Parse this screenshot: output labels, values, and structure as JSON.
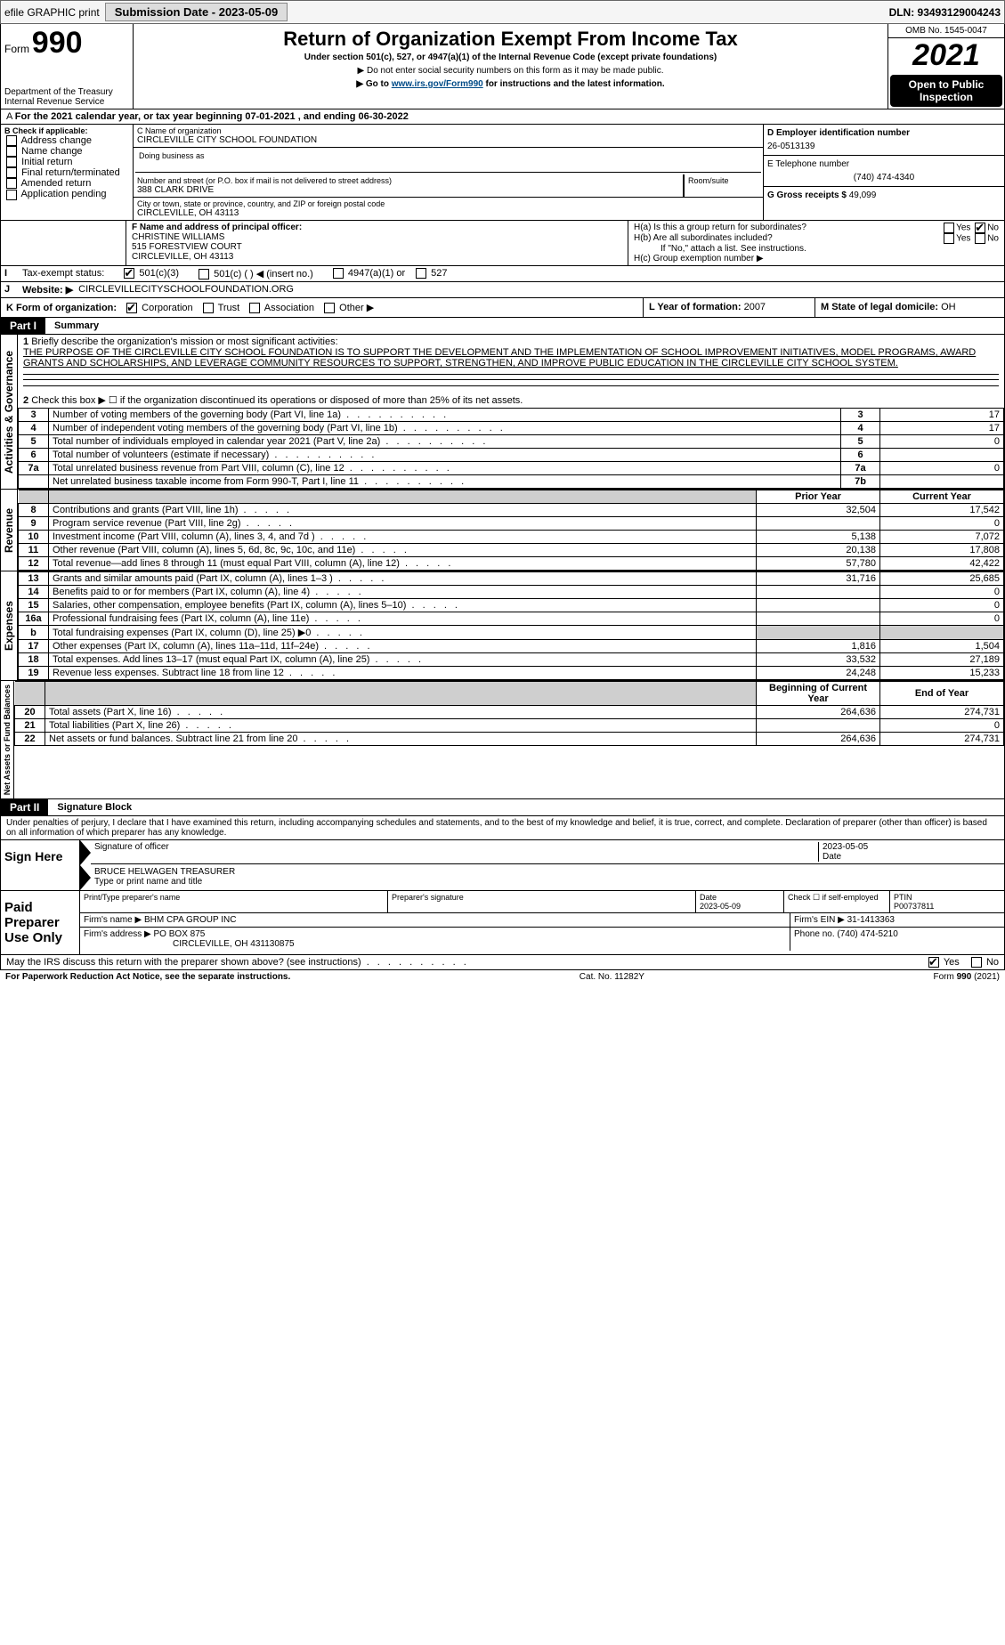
{
  "header": {
    "efile": "efile GRAPHIC print",
    "submission": "Submission Date - 2023-05-09",
    "dln": "DLN: 93493129004243"
  },
  "formTop": {
    "formLabel": "Form",
    "formNum": "990",
    "dept1": "Department of the Treasury",
    "dept2": "Internal Revenue Service",
    "title": "Return of Organization Exempt From Income Tax",
    "subtitle": "Under section 501(c), 527, or 4947(a)(1) of the Internal Revenue Code (except private foundations)",
    "note1": "▶ Do not enter social security numbers on this form as it may be made public.",
    "note2a": "▶ Go to ",
    "note2link": "www.irs.gov/Form990",
    "note2b": " for instructions and the latest information.",
    "omb": "OMB No. 1545-0047",
    "year": "2021",
    "open": "Open to Public Inspection"
  },
  "A": {
    "text": "For the 2021 calendar year, or tax year beginning 07-01-2021    , and ending 06-30-2022"
  },
  "B": {
    "title": "B Check if applicable:",
    "items": [
      "Address change",
      "Name change",
      "Initial return",
      "Final return/terminated",
      "Amended return",
      "Application pending"
    ]
  },
  "C": {
    "nameLabel": "C Name of organization",
    "name": "CIRCLEVILLE CITY SCHOOL FOUNDATION",
    "dba": "Doing business as",
    "streetLabel": "Number and street (or P.O. box if mail is not delivered to street address)",
    "street": "388 CLARK DRIVE",
    "room": "Room/suite",
    "cityLabel": "City or town, state or province, country, and ZIP or foreign postal code",
    "city": "CIRCLEVILLE, OH  43113"
  },
  "D": {
    "einLabel": "D Employer identification number",
    "ein": "26-0513139"
  },
  "E": {
    "telLabel": "E Telephone number",
    "tel": "(740) 474-4340"
  },
  "G": {
    "label": "G Gross receipts $",
    "val": "49,099"
  },
  "F": {
    "label": "F Name and address of principal officer:",
    "line1": "CHRISTINE WILLIAMS",
    "line2": "515 FORESTVIEW COURT",
    "line3": "CIRCLEVILLE, OH  43113"
  },
  "H": {
    "a": "H(a)  Is this a group return for subordinates?",
    "b": "H(b)  Are all subordinates included?",
    "bnote": "If \"No,\" attach a list. See instructions.",
    "c": "H(c)  Group exemption number ▶"
  },
  "I": {
    "label": "Tax-exempt status:",
    "opt1": "501(c)(3)",
    "opt2": "501(c) (  ) ◀ (insert no.)",
    "opt3": "4947(a)(1) or",
    "opt4": "527"
  },
  "J": {
    "label": "Website: ▶",
    "val": "CIRCLEVILLECITYSCHOOLFOUNDATION.ORG"
  },
  "K": {
    "label": "K Form of organization:",
    "opts": [
      "Corporation",
      "Trust",
      "Association",
      "Other ▶"
    ]
  },
  "L": {
    "label": "L Year of formation:",
    "val": "2007"
  },
  "M": {
    "label": "M State of legal domicile:",
    "val": "OH"
  },
  "part1": {
    "header": "Part I",
    "title": "Summary",
    "line1label": "Briefly describe the organization's mission or most significant activities:",
    "mission": "THE PURPOSE OF THE CIRCLEVILLE CITY SCHOOL FOUNDATION IS TO SUPPORT THE DEVELOPMENT AND THE IMPLEMENTATION OF SCHOOL IMPROVEMENT INITIATIVES, MODEL PROGRAMS, AWARD GRANTS AND SCHOLARSHIPS, AND LEVERAGE COMMUNITY RESOURCES TO SUPPORT, STRENGTHEN, AND IMPROVE PUBLIC EDUCATION IN THE CIRCLEVILLE CITY SCHOOL SYSTEM.",
    "line2": "Check this box ▶ ☐ if the organization discontinued its operations or disposed of more than 25% of its net assets.",
    "rows": [
      {
        "n": "3",
        "label": "Number of voting members of the governing body (Part VI, line 1a)",
        "box": "3",
        "val": "17"
      },
      {
        "n": "4",
        "label": "Number of independent voting members of the governing body (Part VI, line 1b)",
        "box": "4",
        "val": "17"
      },
      {
        "n": "5",
        "label": "Total number of individuals employed in calendar year 2021 (Part V, line 2a)",
        "box": "5",
        "val": "0"
      },
      {
        "n": "6",
        "label": "Total number of volunteers (estimate if necessary)",
        "box": "6",
        "val": ""
      },
      {
        "n": "7a",
        "label": "Total unrelated business revenue from Part VIII, column (C), line 12",
        "box": "7a",
        "val": "0"
      },
      {
        "n": "",
        "label": "Net unrelated business taxable income from Form 990-T, Part I, line 11",
        "box": "7b",
        "val": ""
      }
    ],
    "colPrior": "Prior Year",
    "colCurrent": "Current Year",
    "revenue": [
      {
        "n": "8",
        "label": "Contributions and grants (Part VIII, line 1h)",
        "p": "32,504",
        "c": "17,542"
      },
      {
        "n": "9",
        "label": "Program service revenue (Part VIII, line 2g)",
        "p": "",
        "c": "0"
      },
      {
        "n": "10",
        "label": "Investment income (Part VIII, column (A), lines 3, 4, and 7d )",
        "p": "5,138",
        "c": "7,072"
      },
      {
        "n": "11",
        "label": "Other revenue (Part VIII, column (A), lines 5, 6d, 8c, 9c, 10c, and 11e)",
        "p": "20,138",
        "c": "17,808"
      },
      {
        "n": "12",
        "label": "Total revenue—add lines 8 through 11 (must equal Part VIII, column (A), line 12)",
        "p": "57,780",
        "c": "42,422"
      }
    ],
    "expenses": [
      {
        "n": "13",
        "label": "Grants and similar amounts paid (Part IX, column (A), lines 1–3 )",
        "p": "31,716",
        "c": "25,685"
      },
      {
        "n": "14",
        "label": "Benefits paid to or for members (Part IX, column (A), line 4)",
        "p": "",
        "c": "0"
      },
      {
        "n": "15",
        "label": "Salaries, other compensation, employee benefits (Part IX, column (A), lines 5–10)",
        "p": "",
        "c": "0"
      },
      {
        "n": "16a",
        "label": "Professional fundraising fees (Part IX, column (A), line 11e)",
        "p": "",
        "c": "0"
      },
      {
        "n": "b",
        "label": "Total fundraising expenses (Part IX, column (D), line 25) ▶0",
        "p": "SHADE",
        "c": "SHADE"
      },
      {
        "n": "17",
        "label": "Other expenses (Part IX, column (A), lines 11a–11d, 11f–24e)",
        "p": "1,816",
        "c": "1,504"
      },
      {
        "n": "18",
        "label": "Total expenses. Add lines 13–17 (must equal Part IX, column (A), line 25)",
        "p": "33,532",
        "c": "27,189"
      },
      {
        "n": "19",
        "label": "Revenue less expenses. Subtract line 18 from line 12",
        "p": "24,248",
        "c": "15,233"
      }
    ],
    "colBegin": "Beginning of Current Year",
    "colEnd": "End of Year",
    "net": [
      {
        "n": "20",
        "label": "Total assets (Part X, line 16)",
        "p": "264,636",
        "c": "274,731"
      },
      {
        "n": "21",
        "label": "Total liabilities (Part X, line 26)",
        "p": "",
        "c": "0"
      },
      {
        "n": "22",
        "label": "Net assets or fund balances. Subtract line 21 from line 20",
        "p": "264,636",
        "c": "274,731"
      }
    ],
    "vlabels": {
      "gov": "Activities & Governance",
      "rev": "Revenue",
      "exp": "Expenses",
      "net": "Net Assets or Fund Balances"
    }
  },
  "part2": {
    "header": "Part II",
    "title": "Signature Block",
    "decl": "Under penalties of perjury, I declare that I have examined this return, including accompanying schedules and statements, and to the best of my knowledge and belief, it is true, correct, and complete. Declaration of preparer (other than officer) is based on all information of which preparer has any knowledge."
  },
  "sign": {
    "left": "Sign Here",
    "sigOfficer": "Signature of officer",
    "date": "Date",
    "dateVal": "2023-05-05",
    "name": "BRUCE HELWAGEN  TREASURER",
    "nameLabel": "Type or print name and title"
  },
  "paid": {
    "left": "Paid Preparer Use Only",
    "prepName": "Print/Type preparer's name",
    "prepSig": "Preparer's signature",
    "dateLabel": "Date",
    "dateVal": "2023-05-09",
    "checkSelf": "Check ☐ if self-employed",
    "ptinLabel": "PTIN",
    "ptin": "P00737811",
    "firmName": "Firm's name    ▶",
    "firmVal": "BHM CPA GROUP INC",
    "firmEIN": "Firm's EIN ▶",
    "firmEINVal": "31-1413363",
    "firmAddr": "Firm's address ▶",
    "firmAddrVal1": "PO BOX 875",
    "firmAddrVal2": "CIRCLEVILLE, OH  431130875",
    "phone": "Phone no.",
    "phoneVal": "(740) 474-5210"
  },
  "discuss": {
    "text": "May the IRS discuss this return with the preparer shown above? (see instructions)",
    "yes": "Yes",
    "no": "No"
  },
  "footer": {
    "left": "For Paperwork Reduction Act Notice, see the separate instructions.",
    "mid": "Cat. No. 11282Y",
    "right": "Form 990 (2021)"
  },
  "yesno": {
    "yes": "Yes",
    "no": "No"
  }
}
